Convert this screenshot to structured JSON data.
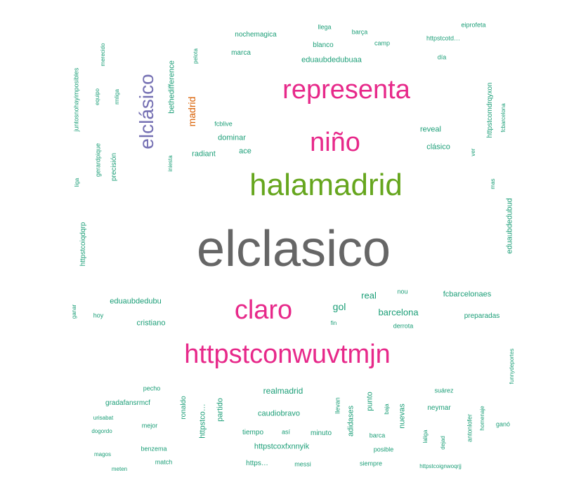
{
  "words": {
    "elclasico": "elclasico",
    "halamadrid": "halamadrid",
    "nino": "niño",
    "representa": "representa",
    "claro": "claro",
    "httpstconwuvtmjn": "httpstconwuvtmjn",
    "elclasico_accent": "elclásico",
    "madrid": "madrid",
    "nochemagica": "nochemagica",
    "llega": "llega",
    "barca_cedilla": "barça",
    "eiprofeta": "eiprofeta",
    "camp": "camp",
    "httpstcotd": "httpstcotd…",
    "blanco": "blanco",
    "marca": "marca",
    "dia": "día",
    "eduaubdedubuaa": "eduaubdedubuaa",
    "pelota": "pelota",
    "merecido": "merecido",
    "bethedifference": "bethedifference",
    "juntosnohayimposibles": "juntosnohayimposibles",
    "equipo": "equipo",
    "rmliga": "rmliga",
    "fcblive": "fcblive",
    "dominar": "dominar",
    "ace": "ace",
    "radiant": "radiant",
    "reveal": "reveal",
    "clasico": "clásico",
    "httpstcomdrqyxon": "httpstcomdrqyxon",
    "fcbarcelona": "fcbarcelona",
    "ver": "ver",
    "gerardpique": "gerardpique",
    "precision": "precisión",
    "iniesta": "iniesta",
    "liga": "liga",
    "mas": "mas",
    "httpstcoiqdqrp": "httpstcoiqdqrp",
    "eduaubdedubud": "eduaubdedubud",
    "eduaubdedubu": "eduaubdedubu",
    "ganar": "ganar",
    "hoy": "hoy",
    "cristiano": "cristiano",
    "real": "real",
    "nou": "nou",
    "fcbarcelonaes": "fcbarcelonaes",
    "gol": "gol",
    "barcelona": "barcelona",
    "preparadas": "preparadas",
    "fin": "fin",
    "derrota": "derrota",
    "funnydeportes": "funnydeportes",
    "pecho": "pecho",
    "gradafansrmcf": "gradafansrmcf",
    "ronaldo": "ronaldo",
    "httpstco": "httpstco…",
    "partido": "partido",
    "realmadrid": "realmadrid",
    "llevan": "llevan",
    "punto": "punto",
    "suarez": "suárez",
    "neymar": "neymar",
    "urisabat": "urisabat",
    "caudiobravo": "caudiobravo",
    "adidases": "adidases",
    "baja": "baja",
    "nuevas": "nuevas",
    "dogordo": "dogordo",
    "mejor": "mejor",
    "tiempo": "tiempo",
    "asi": "así",
    "minuto": "minuto",
    "barca": "barca",
    "laliga": "laliga",
    "dejad": "dejad",
    "antonlofer": "antonlofer",
    "homenaje": "homenaje",
    "gano": "ganó",
    "magos": "magos",
    "benzema": "benzema",
    "httpstcoxfxnnyik": "httpstcoxfxnnyik",
    "posible": "posible",
    "match": "match",
    "https": "https…",
    "messi": "messi",
    "siempre": "siempre",
    "httpstcoignwoqrjj": "httpstcoignwoqrjj",
    "meten": "meten"
  },
  "colors": {
    "teal": "#1b9e77",
    "gray": "#666666",
    "pink": "#e7298a",
    "green": "#66a61e",
    "purple": "#7570b3",
    "orange": "#d95f02"
  }
}
